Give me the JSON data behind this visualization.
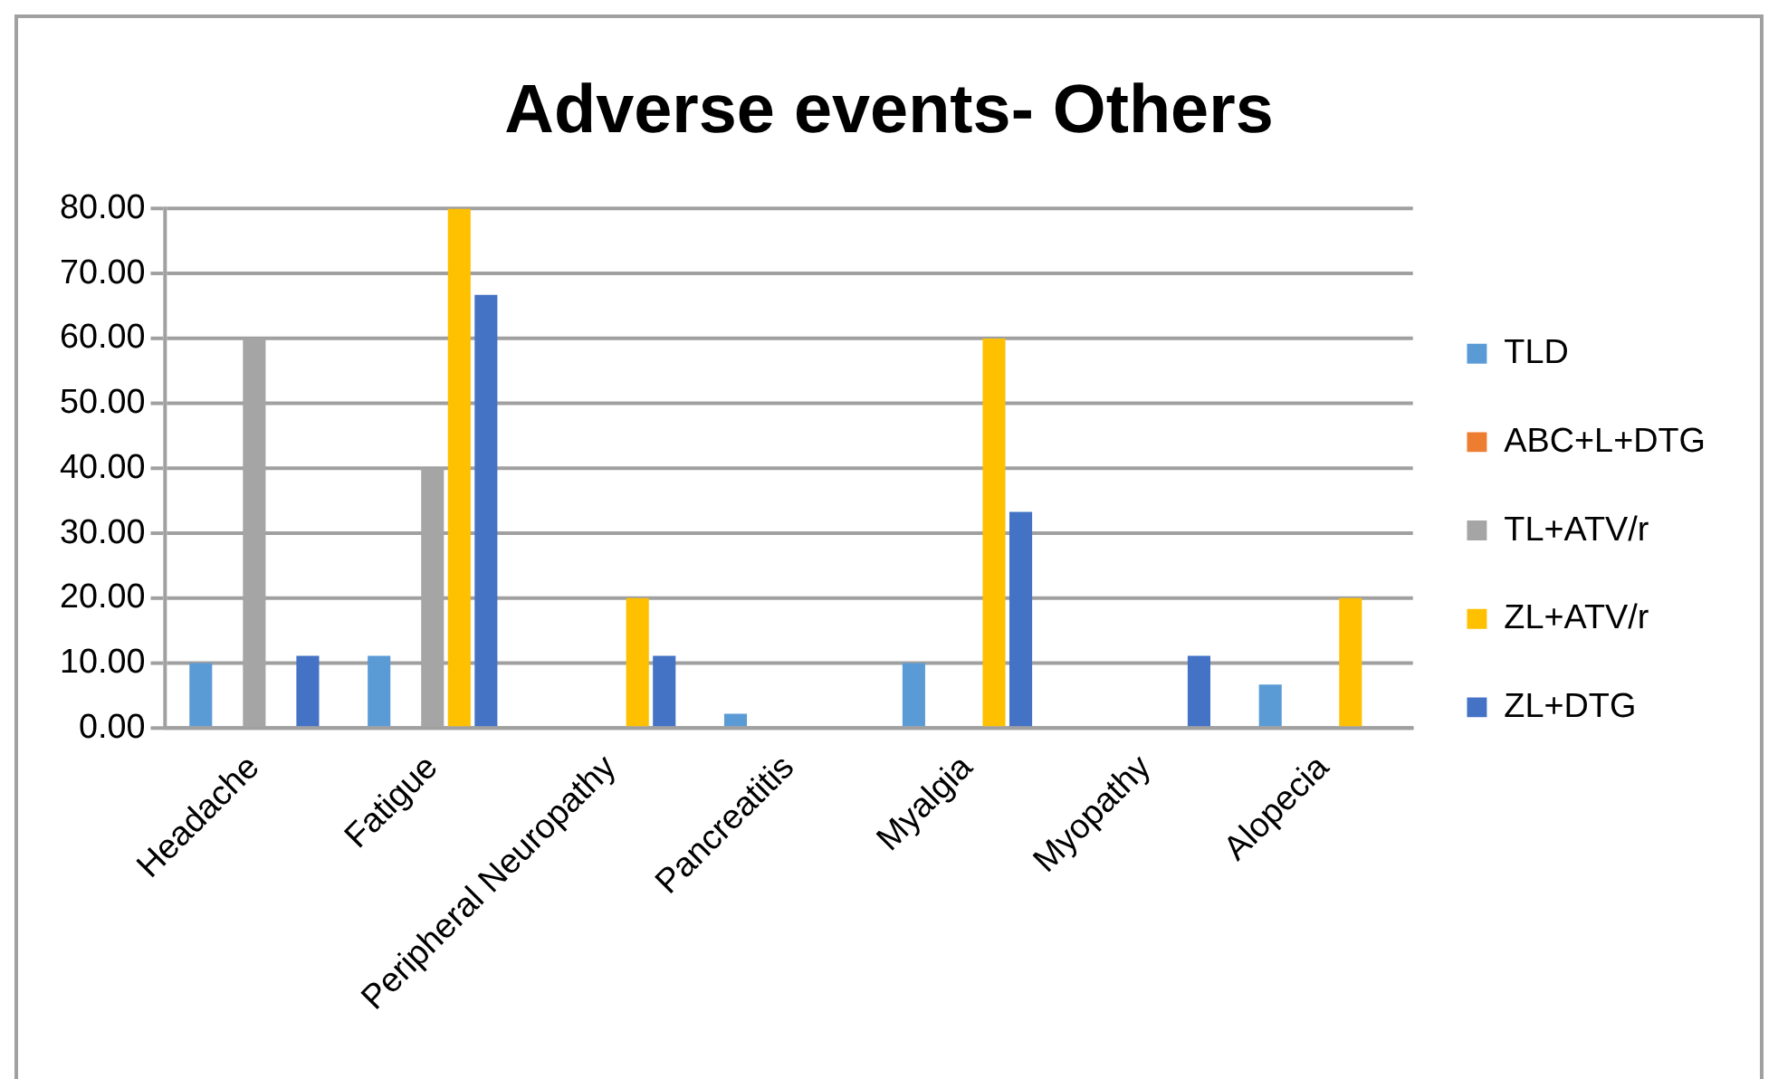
{
  "chart_data": {
    "type": "bar",
    "title": "Adverse events- Others",
    "categories": [
      "Headache",
      "Fatigue",
      "Peripheral Neuropathy",
      "Pancreatitis",
      "Myalgia",
      "Myopathy",
      "Alopecia"
    ],
    "series": [
      {
        "name": "TLD",
        "color": "#5b9bd5",
        "values": [
          10,
          11.1,
          0,
          2.2,
          10,
          0,
          6.7
        ]
      },
      {
        "name": "ABC+L+DTG",
        "color": "#ed7d31",
        "values": [
          0,
          0,
          0,
          0,
          0,
          0,
          0
        ]
      },
      {
        "name": "TL+ATV/r",
        "color": "#a5a5a5",
        "values": [
          60,
          40,
          0,
          0,
          0,
          0,
          0
        ]
      },
      {
        "name": "ZL+ATV/r",
        "color": "#ffc000",
        "values": [
          0,
          80,
          20,
          0,
          60,
          0,
          20
        ]
      },
      {
        "name": "ZL+DTG",
        "color": "#4472c4",
        "values": [
          11.1,
          66.7,
          11.1,
          0,
          33.3,
          11.1,
          0
        ]
      }
    ],
    "ylim": [
      0,
      80
    ],
    "yticks": [
      {
        "value": 0,
        "label": "0.00"
      },
      {
        "value": 10,
        "label": "10.00"
      },
      {
        "value": 20,
        "label": "20.00"
      },
      {
        "value": 30,
        "label": "30.00"
      },
      {
        "value": 40,
        "label": "40.00"
      },
      {
        "value": 50,
        "label": "50.00"
      },
      {
        "value": 60,
        "label": "60.00"
      },
      {
        "value": 70,
        "label": "70.00"
      },
      {
        "value": 80,
        "label": "80.00"
      }
    ],
    "grid": "y",
    "legend": "right"
  }
}
